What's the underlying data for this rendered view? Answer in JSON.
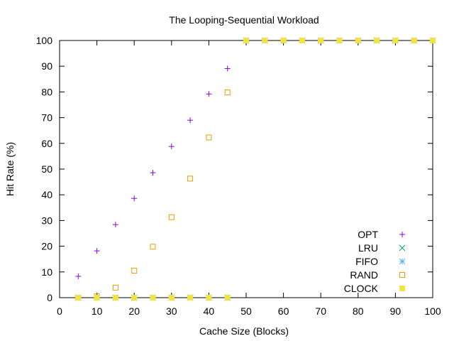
{
  "chart_data": {
    "type": "scatter",
    "title": "The Looping-Sequential Workload",
    "xlabel": "Cache Size (Blocks)",
    "ylabel": "Hit Rate (%)",
    "xlim": [
      0,
      100
    ],
    "ylim": [
      0,
      100
    ],
    "xticks": [
      0,
      10,
      20,
      30,
      40,
      50,
      60,
      70,
      80,
      90,
      100
    ],
    "yticks": [
      0,
      10,
      20,
      30,
      40,
      50,
      60,
      70,
      80,
      90,
      100
    ],
    "grid": false,
    "legend_position": "bottom-right",
    "x": [
      5,
      10,
      15,
      20,
      25,
      30,
      35,
      40,
      45,
      50,
      55,
      60,
      65,
      70,
      75,
      80,
      85,
      90,
      95,
      100
    ],
    "series": [
      {
        "name": "OPT",
        "marker": "plus",
        "color": "#9400d3",
        "values": [
          8.3,
          18.2,
          28.4,
          38.6,
          48.6,
          58.8,
          69,
          79.2,
          89.1,
          100,
          100,
          100,
          100,
          100,
          100,
          100,
          100,
          100,
          100,
          100
        ]
      },
      {
        "name": "LRU",
        "marker": "cross",
        "color": "#009e73",
        "values": [
          0,
          0,
          0,
          0,
          0,
          0,
          0,
          0,
          0,
          100,
          100,
          100,
          100,
          100,
          100,
          100,
          100,
          100,
          100,
          100
        ]
      },
      {
        "name": "FIFO",
        "marker": "star",
        "color": "#56b4e9",
        "values": [
          0,
          0,
          0,
          0,
          0,
          0,
          0,
          0,
          0,
          100,
          100,
          100,
          100,
          100,
          100,
          100,
          100,
          100,
          100,
          100
        ]
      },
      {
        "name": "RAND",
        "marker": "open-square",
        "color": "#e69f00",
        "values": [
          0,
          0.5,
          3.9,
          10.5,
          19.8,
          31.3,
          46.3,
          62.3,
          79.8,
          100,
          100,
          100,
          100,
          100,
          100,
          100,
          100,
          100,
          100,
          100
        ]
      },
      {
        "name": "CLOCK",
        "marker": "filled-square",
        "color": "#f0e442",
        "values": [
          0,
          0,
          0,
          0,
          0,
          0,
          0,
          0,
          0,
          100,
          100,
          100,
          100,
          100,
          100,
          100,
          100,
          100,
          100,
          100
        ]
      }
    ]
  }
}
